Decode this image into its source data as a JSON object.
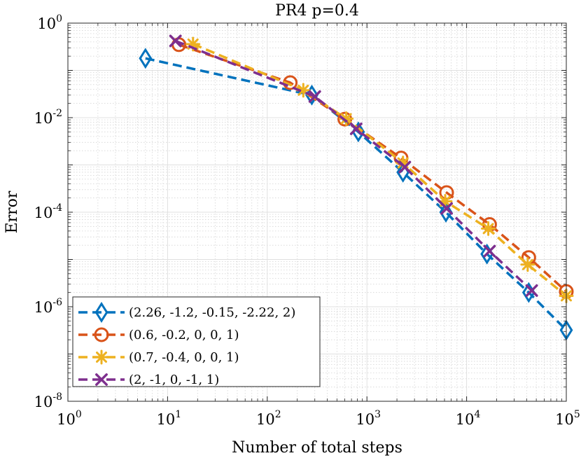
{
  "chart_data": {
    "type": "line",
    "title": "PR4 p=0.4",
    "xlabel": "Number of total steps",
    "ylabel": "Error",
    "xscale": "log",
    "yscale": "log",
    "xlim": [
      1,
      100000
    ],
    "ylim": [
      1e-08,
      1
    ],
    "grid": true,
    "legend_position": "bottom-left",
    "x_ticks": [
      {
        "base": "10",
        "exp": "0"
      },
      {
        "base": "10",
        "exp": "1"
      },
      {
        "base": "10",
        "exp": "2"
      },
      {
        "base": "10",
        "exp": "3"
      },
      {
        "base": "10",
        "exp": "4"
      },
      {
        "base": "10",
        "exp": "5"
      }
    ],
    "y_ticks": [
      {
        "base": "10",
        "exp": "0"
      },
      {
        "base": "10",
        "exp": "-2"
      },
      {
        "base": "10",
        "exp": "-4"
      },
      {
        "base": "10",
        "exp": "-6"
      },
      {
        "base": "10",
        "exp": "-8"
      }
    ],
    "series": [
      {
        "name": "(2.26, -1.2, -0.15, -2.22, 2)",
        "color": "#0072BD",
        "marker": "diamond",
        "x": [
          6,
          280,
          820,
          2300,
          6200,
          16000,
          42000,
          100000
        ],
        "y": [
          0.18,
          0.03,
          0.005,
          0.0007,
          0.0001,
          1.3e-05,
          2e-06,
          3.2e-07
        ]
      },
      {
        "name": "(0.6, -0.2, 0, 0, 1)",
        "color": "#D95319",
        "marker": "circle",
        "x": [
          13,
          170,
          600,
          2200,
          6300,
          17000,
          42000,
          100000
        ],
        "y": [
          0.35,
          0.055,
          0.0093,
          0.0014,
          0.00026,
          5.5e-05,
          1.1e-05,
          2.1e-06
        ]
      },
      {
        "name": "(0.7, -0.4, 0, 0, 1)",
        "color": "#EDB120",
        "marker": "asterisk",
        "x": [
          18,
          230,
          620,
          2300,
          6100,
          16500,
          41000,
          100000
        ],
        "y": [
          0.36,
          0.038,
          0.0095,
          0.0011,
          0.00017,
          4.5e-05,
          7.8e-06,
          1.7e-06
        ]
      },
      {
        "name": "(2, -1, 0, -1, 1)",
        "color": "#7E2F8E",
        "marker": "cross",
        "x": [
          12,
          300,
          780,
          2400,
          6300,
          17000,
          45000
        ],
        "y": [
          0.42,
          0.028,
          0.0058,
          0.0009,
          0.00012,
          1.5e-05,
          2.2e-06
        ]
      }
    ]
  }
}
